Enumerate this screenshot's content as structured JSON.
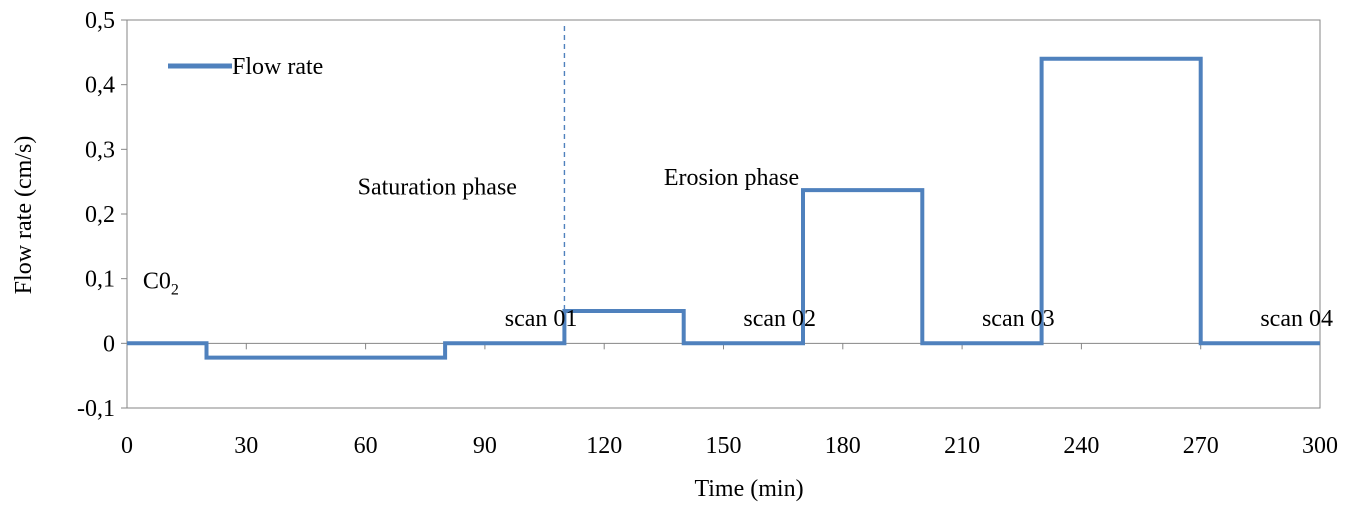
{
  "chart_data": {
    "type": "line",
    "title": "",
    "xlabel": "Time (min)",
    "ylabel": "Flow rate (cm/s)",
    "xlim": [
      0,
      300
    ],
    "ylim": [
      -0.1,
      0.5
    ],
    "x_ticks": [
      0,
      30,
      60,
      90,
      120,
      150,
      180,
      210,
      240,
      270,
      300
    ],
    "x_tick_labels": [
      "0",
      "30",
      "60",
      "90",
      "120",
      "150",
      "180",
      "210",
      "240",
      "270",
      "300"
    ],
    "y_ticks": [
      -0.1,
      0,
      0.1,
      0.2,
      0.3,
      0.4,
      0.5
    ],
    "y_tick_labels": [
      "-0,1",
      "0",
      "0,1",
      "0,2",
      "0,3",
      "0,4",
      "0,5"
    ],
    "grid": false,
    "legend_position": "top-left",
    "series": [
      {
        "name": "Flow rate",
        "color": "#4F81BD",
        "step": true,
        "x": [
          0,
          20,
          20,
          80,
          80,
          110,
          110,
          140,
          140,
          170,
          170,
          200,
          200,
          230,
          230,
          270,
          270,
          300
        ],
        "y": [
          0,
          0,
          -0.022,
          -0.022,
          0,
          0,
          0.05,
          0.05,
          0,
          0,
          0.237,
          0.237,
          0,
          0,
          0.44,
          0.44,
          0,
          0
        ]
      }
    ],
    "reference_lines": [
      {
        "axis": "x",
        "value": 110,
        "style": "dashed",
        "color": "#4F81BD"
      }
    ],
    "annotations": [
      {
        "text": "C0",
        "subscript": "2",
        "x": 4,
        "y": 0.085
      },
      {
        "text": "Saturation phase",
        "x": 58,
        "y": 0.23
      },
      {
        "text": "Erosion phase",
        "x": 135,
        "y": 0.245
      },
      {
        "text": "scan 01",
        "x": 95,
        "y": 0.027
      },
      {
        "text": "scan 02",
        "x": 155,
        "y": 0.027
      },
      {
        "text": "scan 03",
        "x": 215,
        "y": 0.027
      },
      {
        "text": "scan 04",
        "x": 285,
        "y": 0.027
      }
    ]
  }
}
